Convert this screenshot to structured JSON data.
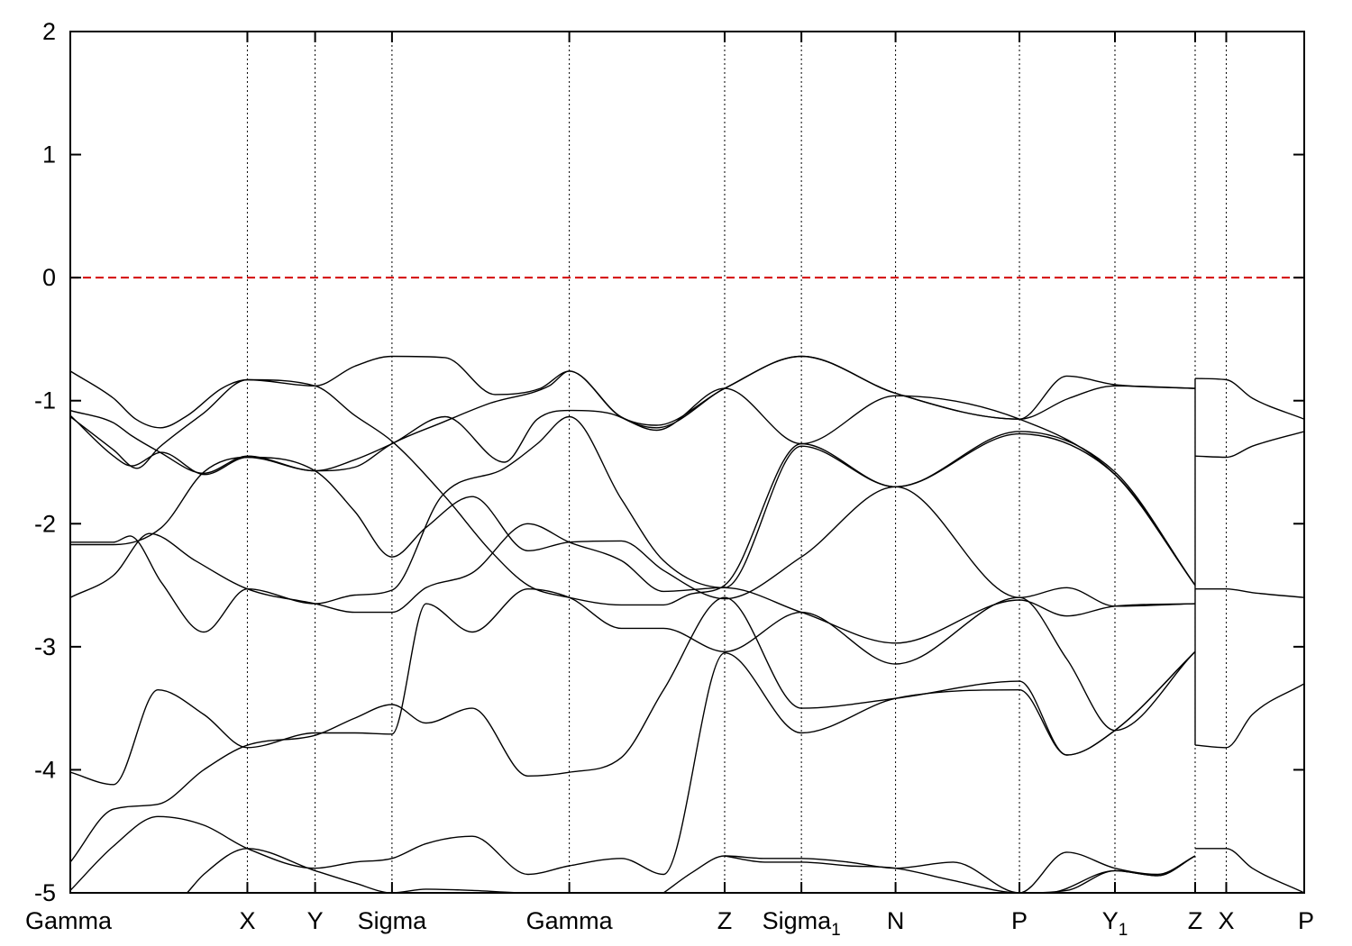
{
  "chart_data": {
    "type": "line",
    "title": "",
    "xlabel": "",
    "ylabel": "",
    "ylim": [
      -5,
      2
    ],
    "xlim": [
      0,
      1
    ],
    "yticks": [
      -5,
      -4,
      -3,
      -2,
      -1,
      0,
      1,
      2
    ],
    "grid": "vertical dotted lines at k-points",
    "fermi_level": {
      "value": 0,
      "color": "#d40000",
      "style": "dashed"
    },
    "kpoints": [
      {
        "label": "Gamma",
        "sub": "",
        "x": 0.0
      },
      {
        "label": "X",
        "sub": "",
        "x": 0.1435
      },
      {
        "label": "Y",
        "sub": "",
        "x": 0.1984
      },
      {
        "label": "Sigma",
        "sub": "",
        "x": 0.2607
      },
      {
        "label": "Gamma",
        "sub": "",
        "x": 0.4044
      },
      {
        "label": "Z",
        "sub": "",
        "x": 0.5303
      },
      {
        "label": "Sigma",
        "sub": "1",
        "x": 0.5925
      },
      {
        "label": "N",
        "sub": "",
        "x": 0.6688
      },
      {
        "label": "P",
        "sub": "",
        "x": 0.7692
      },
      {
        "label": "Y",
        "sub": "1",
        "x": 0.8466
      },
      {
        "label": "Z",
        "sub": "",
        "x": 0.9116
      },
      {
        "label": "X",
        "sub": "",
        "x": 0.9368
      },
      {
        "label": "P",
        "sub": "",
        "x": 1.0
      }
    ],
    "discontinuities": [
      0.9116
    ],
    "series": [
      {
        "x": [
          0.0,
          0.035,
          0.053,
          0.073,
          0.095,
          0.1228,
          0.1435,
          0.1984,
          0.2305,
          0.2607,
          0.3037,
          0.3442,
          0.3809,
          0.4044,
          0.446,
          0.4751,
          0.5303,
          0.5925,
          0.6688,
          0.7692,
          0.8076,
          0.8466,
          0.9116
        ],
        "y": [
          -0.76,
          -0.98,
          -1.15,
          -1.22,
          -1.12,
          -0.9,
          -0.83,
          -0.88,
          -0.72,
          -0.64,
          -0.65,
          -0.95,
          -0.9,
          -0.76,
          -1.13,
          -1.22,
          -0.9,
          -0.64,
          -0.94,
          -1.15,
          -0.8,
          -0.87,
          -0.9
        ]
      },
      {
        "x": [
          0.0,
          0.035,
          0.049,
          0.071,
          0.1082,
          0.1435,
          0.1984,
          0.2305,
          0.2607,
          0.3007,
          0.3405,
          0.3882,
          0.4044,
          0.446,
          0.4751,
          0.5303,
          0.5925,
          0.6688,
          0.7692,
          0.8095,
          0.8466,
          0.9116
        ],
        "y": [
          -1.08,
          -1.18,
          -1.28,
          -1.41,
          -1.59,
          -1.45,
          -1.57,
          -1.54,
          -1.35,
          -1.18,
          -1.02,
          -0.88,
          -0.76,
          -1.13,
          -1.2,
          -0.9,
          -0.64,
          -0.94,
          -1.15,
          -0.98,
          -0.88,
          -0.9
        ]
      },
      {
        "x": [
          0.0,
          0.035,
          0.0496,
          0.074,
          0.109,
          0.1435,
          0.1984,
          0.2305,
          0.2607,
          0.3037,
          0.3518,
          0.3785,
          0.4044,
          0.4358,
          0.4751,
          0.5303,
          0.5925,
          0.6688,
          0.7692,
          0.8466,
          0.9116
        ],
        "y": [
          -1.12,
          -1.45,
          -1.53,
          -1.42,
          -1.6,
          -1.46,
          -1.57,
          -1.48,
          -1.35,
          -1.13,
          -1.5,
          -1.15,
          -1.08,
          -1.1,
          -1.24,
          -0.9,
          -1.35,
          -0.96,
          -1.15,
          -1.6,
          -2.5
        ]
      },
      {
        "x": [
          0.0,
          0.035,
          0.054,
          0.072,
          0.1082,
          0.1435,
          0.1984,
          0.2305,
          0.2607,
          0.3037,
          0.3405,
          0.3709,
          0.4044,
          0.4466,
          0.4808,
          0.5034,
          0.5303,
          0.5925,
          0.6688,
          0.7692,
          0.8466,
          0.9116
        ],
        "y": [
          -1.13,
          -1.4,
          -1.55,
          -1.38,
          -1.1,
          -0.83,
          -0.88,
          -1.12,
          -1.33,
          -1.78,
          -2.22,
          -2.5,
          -2.6,
          -2.66,
          -2.66,
          -2.57,
          -2.5,
          -1.35,
          -1.7,
          -1.25,
          -1.58,
          -2.5
        ]
      },
      {
        "x": [
          0.0,
          0.035,
          0.0483,
          0.074,
          0.1082,
          0.1435,
          0.1984,
          0.2305,
          0.2607,
          0.3007,
          0.3518,
          0.3785,
          0.4044,
          0.4466,
          0.4808,
          0.5303,
          0.5925,
          0.6688,
          0.7692,
          0.8466,
          0.9116
        ],
        "y": [
          -2.15,
          -2.15,
          -2.1,
          -2.48,
          -2.88,
          -2.53,
          -2.65,
          -2.58,
          -2.54,
          -1.78,
          -1.55,
          -1.35,
          -1.13,
          -1.8,
          -2.3,
          -2.52,
          -1.37,
          -1.7,
          -1.27,
          -1.6,
          -2.5
        ]
      },
      {
        "x": [
          0.0,
          0.035,
          0.074,
          0.1082,
          0.1435,
          0.1984,
          0.2305,
          0.2607,
          0.2883,
          0.3257,
          0.3709,
          0.4044,
          0.4466,
          0.4808,
          0.5303,
          0.5925,
          0.6688,
          0.7692,
          0.8076,
          0.8466,
          0.9116
        ],
        "y": [
          -2.17,
          -2.17,
          -2.03,
          -1.58,
          -1.46,
          -1.57,
          -1.9,
          -2.27,
          -2.03,
          -1.78,
          -2.22,
          -2.15,
          -2.14,
          -2.38,
          -2.61,
          -2.27,
          -1.7,
          -2.6,
          -2.52,
          -2.67,
          -2.65
        ]
      },
      {
        "x": [
          0.0,
          0.035,
          0.0643,
          0.1013,
          0.1435,
          0.1984,
          0.2305,
          0.2607,
          0.2883,
          0.3257,
          0.3709,
          0.4044,
          0.4466,
          0.4808,
          0.5303,
          0.5925,
          0.6688,
          0.7692,
          0.8076,
          0.8466,
          0.9116
        ],
        "y": [
          -2.6,
          -2.42,
          -2.08,
          -2.3,
          -2.53,
          -2.65,
          -2.72,
          -2.72,
          -2.52,
          -2.4,
          -2.0,
          -2.15,
          -2.3,
          -2.55,
          -2.52,
          -2.72,
          -2.97,
          -2.62,
          -2.75,
          -2.67,
          -2.65
        ]
      },
      {
        "x": [
          0.0,
          0.035,
          0.071,
          0.1082,
          0.1435,
          0.1984,
          0.2305,
          0.2607,
          0.2883,
          0.3257,
          0.3709,
          0.4044,
          0.4466,
          0.4808,
          0.5303,
          0.5925,
          0.6688,
          0.7692,
          0.8076,
          0.8466,
          0.9116
        ],
        "y": [
          -4.02,
          -4.12,
          -3.35,
          -3.55,
          -3.82,
          -3.7,
          -3.7,
          -3.71,
          -2.65,
          -2.88,
          -2.53,
          -2.6,
          -2.85,
          -2.85,
          -3.04,
          -2.72,
          -3.14,
          -2.6,
          -3.1,
          -3.68,
          -3.04
        ]
      },
      {
        "x": [
          0.0,
          0.035,
          0.071,
          0.1082,
          0.1435,
          0.1984,
          0.2305,
          0.2607,
          0.2883,
          0.3257,
          0.3709,
          0.4044,
          0.4466,
          0.4808,
          0.5303,
          0.5925,
          0.6688,
          0.7692,
          0.8076,
          0.8466,
          0.9116
        ],
        "y": [
          -4.75,
          -4.32,
          -4.28,
          -4.0,
          -3.8,
          -3.72,
          -3.58,
          -3.47,
          -3.62,
          -3.5,
          -4.05,
          -4.02,
          -3.9,
          -3.35,
          -2.6,
          -3.5,
          -3.42,
          -3.28,
          -3.88,
          -3.68,
          -3.04
        ]
      },
      {
        "x": [
          0.0,
          0.035,
          0.071,
          0.1082,
          0.1435,
          0.1984,
          0.2305,
          0.2607,
          0.2883,
          0.3257,
          0.3709,
          0.4044,
          0.4466,
          0.4808,
          0.5303,
          0.5925,
          0.6688,
          0.7692,
          0.8076,
          0.8466,
          0.9116
        ],
        "y": [
          -4.98,
          -4.62,
          -4.38,
          -4.45,
          -4.64,
          -4.8,
          -4.75,
          -4.72,
          -4.6,
          -4.54,
          -4.85,
          -4.78,
          -4.72,
          -4.85,
          -3.05,
          -3.7,
          -3.42,
          -3.35,
          -3.88,
          -3.68,
          -3.04
        ]
      },
      {
        "x": [
          0.0947,
          0.1082,
          0.1435,
          0.1984,
          0.2305,
          0.2607,
          0.2883,
          0.3257,
          0.3709,
          0.4044
        ],
        "y": [
          -5.0,
          -4.85,
          -4.64,
          -4.82,
          -4.92,
          -5.0,
          -4.97,
          -4.98,
          -5.0,
          -5.0
        ]
      },
      {
        "x": [
          0.4808,
          0.5046,
          0.5303,
          0.5629,
          0.5925,
          0.6307,
          0.6688,
          0.7155,
          0.7692,
          0.8076,
          0.8466,
          0.8813,
          0.9116
        ],
        "y": [
          -5.0,
          -4.83,
          -4.7,
          -4.72,
          -4.72,
          -4.75,
          -4.8,
          -4.75,
          -5.0,
          -4.67,
          -4.8,
          -4.85,
          -4.7
        ]
      },
      {
        "x": [
          0.5303,
          0.5629,
          0.5925,
          0.6307,
          0.6688,
          0.7155,
          0.7692,
          0.8076,
          0.8466,
          0.8813,
          0.9116
        ],
        "y": [
          -4.7,
          -4.75,
          -4.75,
          -4.78,
          -4.8,
          -4.9,
          -5.0,
          -4.98,
          -4.82,
          -4.86,
          -4.7
        ]
      },
      {
        "x": [
          0.7692,
          0.7919,
          0.8466,
          0.8813,
          0.9116
        ],
        "y": [
          -5.0,
          -5.0,
          -4.82,
          -4.86,
          -4.7
        ]
      },
      {
        "x": [
          0.9116,
          0.9368,
          0.958,
          1.0
        ],
        "y": [
          -0.82,
          -0.83,
          -0.98,
          -1.15
        ]
      },
      {
        "x": [
          0.9116,
          0.9368,
          0.958,
          1.0
        ],
        "y": [
          -1.45,
          -1.46,
          -1.37,
          -1.25
        ]
      },
      {
        "x": [
          0.9116,
          0.9368,
          0.958,
          1.0
        ],
        "y": [
          -2.53,
          -2.53,
          -2.56,
          -2.6
        ]
      },
      {
        "x": [
          0.9116,
          0.9368,
          0.958,
          1.0
        ],
        "y": [
          -3.8,
          -3.82,
          -3.55,
          -3.3
        ]
      },
      {
        "x": [
          0.9116,
          0.9368,
          0.958,
          1.0
        ],
        "y": [
          -4.64,
          -4.64,
          -4.8,
          -5.0
        ]
      }
    ]
  }
}
